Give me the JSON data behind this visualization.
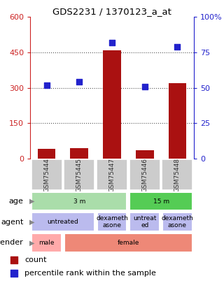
{
  "title": "GDS2231 / 1370123_a_at",
  "samples": [
    "GSM75444",
    "GSM75445",
    "GSM75447",
    "GSM75446",
    "GSM75448"
  ],
  "counts": [
    40,
    45,
    460,
    35,
    320
  ],
  "percentiles": [
    52,
    54,
    82,
    51,
    79
  ],
  "ylim_left": [
    0,
    600
  ],
  "ylim_right": [
    0,
    100
  ],
  "yticks_left": [
    0,
    150,
    300,
    450,
    600
  ],
  "yticks_right": [
    0,
    25,
    50,
    75,
    100
  ],
  "bar_color": "#aa1111",
  "dot_color": "#2222cc",
  "age_groups": [
    {
      "label": "3 m",
      "start": 0,
      "end": 3,
      "color": "#aaddaa"
    },
    {
      "label": "15 m",
      "start": 3,
      "end": 5,
      "color": "#55cc55"
    }
  ],
  "agent_groups": [
    {
      "label": "untreated",
      "start": 0,
      "end": 2,
      "color": "#bbbbee"
    },
    {
      "label": "dexameth\nasone",
      "start": 2,
      "end": 3,
      "color": "#bbbbee"
    },
    {
      "label": "untreat\ned",
      "start": 3,
      "end": 4,
      "color": "#bbbbee"
    },
    {
      "label": "dexameth\nasone",
      "start": 4,
      "end": 5,
      "color": "#bbbbee"
    }
  ],
  "gender_groups": [
    {
      "label": "male",
      "start": 0,
      "end": 1,
      "color": "#ffaaaa"
    },
    {
      "label": "female",
      "start": 1,
      "end": 5,
      "color": "#ee8877"
    }
  ],
  "row_labels": [
    "age",
    "agent",
    "gender"
  ],
  "legend_items": [
    {
      "color": "#aa1111",
      "label": "count"
    },
    {
      "color": "#2222cc",
      "label": "percentile rank within the sample"
    }
  ],
  "grid_color": "#555555",
  "sample_box_color": "#cccccc",
  "sample_text_color": "#333333",
  "bg_color": "#ffffff",
  "left_spine_color": "#cc2222",
  "right_spine_color": "#2222cc"
}
